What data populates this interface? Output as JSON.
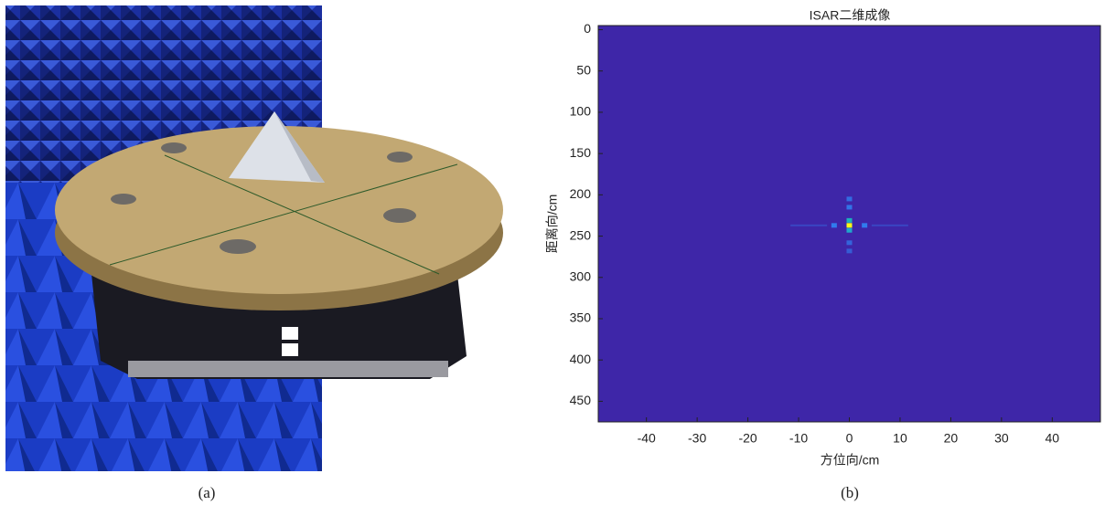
{
  "chart_data": {
    "type": "heatmap",
    "title": "ISAR二维成像",
    "x_label": "方位向/cm",
    "y_label": "距离向/cm",
    "x": [
      0,
      0,
      0,
      0,
      0,
      -3,
      3,
      0,
      0,
      -8,
      8
    ],
    "y": [
      237,
      231,
      243,
      205,
      268,
      237,
      237,
      215,
      258,
      237,
      237
    ],
    "values": [
      1,
      0.45,
      0.4,
      0.18,
      0.14,
      0.22,
      0.22,
      0.2,
      0.16,
      0.1,
      0.1
    ],
    "clim": [
      0,
      1
    ],
    "colormap": [
      "#3e26a8",
      "#2e87f7",
      "#17bcad",
      "#c1bc33",
      "#f9fb15"
    ],
    "xlim": [
      -49.5,
      49.5
    ],
    "ylim": [
      -5,
      475
    ],
    "y_reversed": true,
    "xticks": [
      -40,
      -30,
      -20,
      -10,
      0,
      10,
      20,
      30,
      40
    ],
    "yticks": [
      0,
      50,
      100,
      150,
      200,
      250,
      300,
      350,
      400,
      450
    ]
  },
  "captions": [
    "(a)",
    "(b)"
  ]
}
